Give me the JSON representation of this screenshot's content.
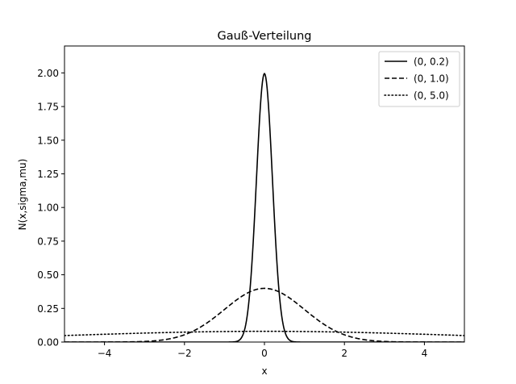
{
  "chart_data": {
    "type": "line",
    "title": "Gauß-Verteilung",
    "xlabel": "x",
    "ylabel": "N(x,sigma,mu)",
    "xlim": [
      -5,
      5
    ],
    "ylim": [
      0,
      2.2
    ],
    "xticks": [
      -4,
      -2,
      0,
      2,
      4
    ],
    "xtick_labels": [
      "−4",
      "−2",
      "0",
      "2",
      "4"
    ],
    "yticks": [
      0,
      0.25,
      0.5,
      0.75,
      1.0,
      1.25,
      1.5,
      1.75,
      2.0
    ],
    "ytick_labels": [
      "0.00",
      "0.25",
      "0.50",
      "0.75",
      "1.00",
      "1.25",
      "1.50",
      "1.75",
      "2.00"
    ],
    "grid": false,
    "legend_position": "top-right",
    "series": [
      {
        "name": "(0, 0.2)",
        "mu": 0,
        "sigma": 0.2,
        "style": "solid",
        "x": [
          -5,
          -1,
          -0.8,
          -0.6,
          -0.5,
          -0.4,
          -0.3,
          -0.2,
          -0.1,
          0,
          0.1,
          0.2,
          0.3,
          0.4,
          0.5,
          0.6,
          0.8,
          1,
          5
        ],
        "y": [
          0,
          0.0,
          0.0003,
          0.0222,
          0.0876,
          0.27,
          0.6476,
          1.2099,
          1.7603,
          1.9947,
          1.7603,
          1.2099,
          0.6476,
          0.27,
          0.0876,
          0.0222,
          0.0003,
          0.0,
          0
        ]
      },
      {
        "name": "(0, 1.0)",
        "mu": 0,
        "sigma": 1.0,
        "style": "dashed",
        "x": [
          -5,
          -4,
          -3,
          -2.5,
          -2,
          -1.5,
          -1,
          -0.5,
          0,
          0.5,
          1,
          1.5,
          2,
          2.5,
          3,
          4,
          5
        ],
        "y": [
          0.0,
          0.0001,
          0.0044,
          0.0175,
          0.054,
          0.1295,
          0.242,
          0.3521,
          0.3989,
          0.3521,
          0.242,
          0.1295,
          0.054,
          0.0175,
          0.0044,
          0.0001,
          0.0
        ]
      },
      {
        "name": "(0, 5.0)",
        "mu": 0,
        "sigma": 5.0,
        "style": "dotted",
        "x": [
          -5,
          -4,
          -3,
          -2,
          -1,
          0,
          1,
          2,
          3,
          4,
          5
        ],
        "y": [
          0.0484,
          0.0579,
          0.0666,
          0.0737,
          0.0782,
          0.0798,
          0.0782,
          0.0737,
          0.0666,
          0.0579,
          0.0484
        ]
      }
    ]
  }
}
